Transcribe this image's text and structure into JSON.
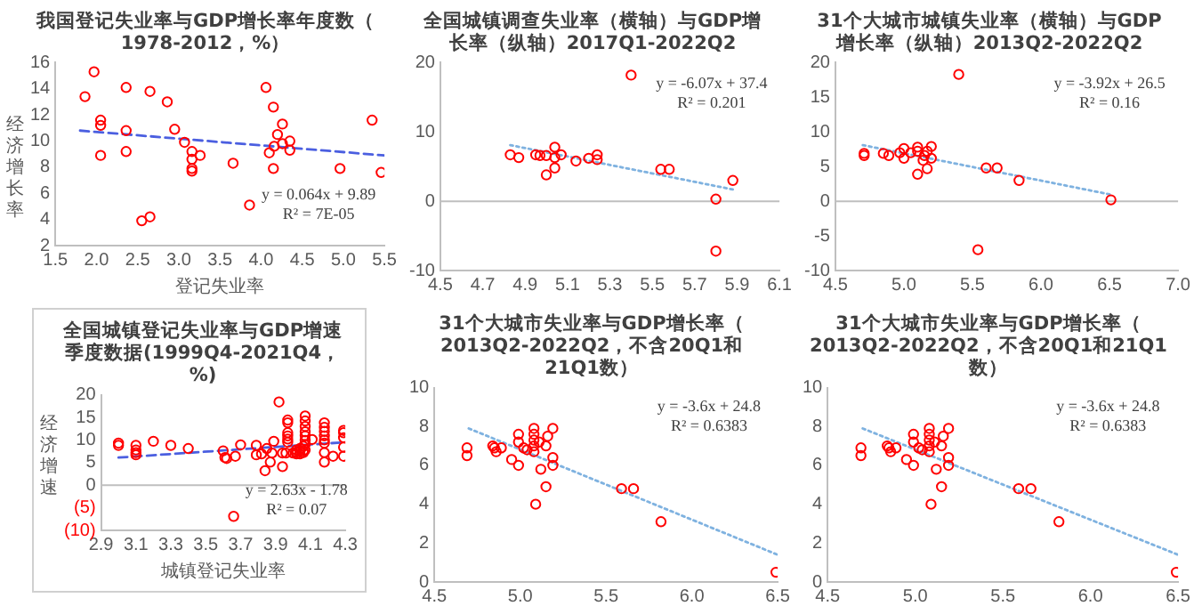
{
  "chart_data": [
    {
      "type": "scatter",
      "title": "我国登记失业率与GDP增长率年度数（1978-2012，%）",
      "xlabel": "登记失业率",
      "ylabel": "经济增长率",
      "xlim": [
        1.5,
        5.5
      ],
      "ylim": [
        2,
        16
      ],
      "xticks": [
        1.5,
        {
          "value": 2,
          "label": "2.0"
        },
        2.5,
        {
          "value": 3,
          "label": "3.0"
        },
        3.5,
        {
          "value": 4,
          "label": "4.0"
        },
        4.5,
        {
          "value": 5,
          "label": "5.0"
        },
        5.5
      ],
      "yticks": [
        2,
        4,
        6,
        8,
        10,
        12,
        14,
        16
      ],
      "annotations": [
        "y = 0.064x + 9.89\nR² = 7E-05"
      ],
      "series": [
        {
          "marker": "circle",
          "color": "#ff0000",
          "x": [
            1.86,
            1.97,
            2.05,
            2.05,
            2.05,
            2.36,
            2.36,
            2.36,
            2.65,
            2.55,
            2.65,
            2.86,
            2.95,
            3.07,
            3.16,
            3.26,
            3.16,
            3.16,
            3.16,
            3.66,
            3.86,
            4.06,
            4.15,
            4.2,
            4.26,
            4.26,
            4.1,
            4.15,
            4.35,
            4.35,
            4.96,
            5.35,
            5.46,
            4.16
          ],
          "values": [
            13.4,
            15.3,
            11.6,
            11.2,
            8.9,
            14.1,
            10.8,
            9.2,
            13.8,
            3.9,
            4.2,
            13.0,
            10.9,
            9.9,
            9.2,
            8.9,
            8.6,
            7.9,
            7.7,
            8.3,
            5.1,
            14.1,
            12.6,
            10.5,
            11.3,
            9.8,
            9.1,
            7.9,
            10.0,
            9.3,
            7.9,
            11.6,
            7.6,
            9.6
          ]
        },
        {
          "type": "line",
          "color": "#4b5fe0",
          "line_style": "dashed",
          "x": [
            1.8,
            5.5
          ],
          "values": [
            10.8,
            8.9
          ]
        }
      ]
    },
    {
      "type": "scatter",
      "title": "全国城镇调查失业率（横轴）与GDP增长率（纵轴）2017Q1-2022Q2",
      "xlim": [
        4.5,
        6.1
      ],
      "ylim": [
        -10,
        20
      ],
      "xticks": [
        4.5,
        4.7,
        4.9,
        5.1,
        5.3,
        5.5,
        5.7,
        5.9,
        6.1
      ],
      "yticks": [
        -10,
        0,
        10,
        20
      ],
      "annotations": [
        "y = -6.07x + 37.4\nR² = 0.201"
      ],
      "series": [
        {
          "marker": "circle",
          "color": "#ff0000",
          "x": [
            4.83,
            4.87,
            4.95,
            4.97,
            5.0,
            5.0,
            5.04,
            5.04,
            5.04,
            5.07,
            5.14,
            5.2,
            5.24,
            5.24,
            5.4,
            5.54,
            5.58,
            5.8,
            5.8,
            5.88
          ],
          "values": [
            6.7,
            6.3,
            6.7,
            6.6,
            6.6,
            3.8,
            7.8,
            6.3,
            4.8,
            6.7,
            5.8,
            6.2,
            6.0,
            6.7,
            18.2,
            4.6,
            4.6,
            0.3,
            -7.2,
            3.0
          ]
        },
        {
          "type": "line",
          "color": "#7fb2e0",
          "line_style": "dotted",
          "x": [
            4.83,
            5.88
          ],
          "values": [
            8.1,
            1.7
          ]
        }
      ]
    },
    {
      "type": "scatter",
      "title": "31个大城市城镇失业率（横轴）与GDP增长率（纵轴）2013Q2-2022Q2",
      "xlim": [
        4.5,
        7.0
      ],
      "ylim": [
        -10,
        20
      ],
      "xticks": [
        4.5,
        {
          "value": 5,
          "label": "5.0"
        },
        5.5,
        {
          "value": 6,
          "label": "6.0"
        },
        6.5,
        {
          "value": 7,
          "label": "7.0"
        }
      ],
      "yticks": [
        -10,
        -5,
        0,
        5,
        10,
        15,
        20
      ],
      "annotations": [
        "y = -3.92x + 26.5\nR² = 0.16"
      ],
      "series": [
        {
          "marker": "circle",
          "color": "#ff0000",
          "x": [
            4.71,
            4.71,
            4.85,
            4.89,
            4.97,
            5.0,
            5.0,
            5.05,
            5.1,
            5.1,
            5.15,
            5.17,
            5.2,
            5.2,
            5.1,
            5.17,
            5.14,
            5.4,
            5.6,
            5.68,
            5.84,
            5.54,
            6.51
          ],
          "values": [
            6.6,
            6.9,
            6.9,
            6.6,
            7.0,
            7.6,
            6.2,
            7.0,
            7.2,
            7.8,
            6.6,
            7.2,
            7.9,
            6.2,
            3.9,
            4.7,
            5.9,
            18.3,
            4.8,
            4.8,
            3.0,
            -7.0,
            0.2
          ]
        },
        {
          "type": "line",
          "color": "#7fb2e0",
          "line_style": "dotted",
          "x": [
            4.7,
            6.5
          ],
          "values": [
            8.1,
            1.0
          ]
        }
      ]
    },
    {
      "type": "scatter",
      "title": "全国城镇登记失业率与GDP增速季度数据(1999Q4-2021Q4，%)",
      "xlabel": "城镇登记失业率",
      "ylabel": "经济增速",
      "xlim": [
        2.9,
        4.3
      ],
      "ylim": [
        -10,
        20
      ],
      "xticks": [
        2.9,
        3.1,
        3.3,
        3.5,
        3.7,
        3.9,
        4.1,
        4.3
      ],
      "yticks": [
        {
          "value": -10,
          "label": "(10)"
        },
        {
          "value": -5,
          "label": "(5)"
        },
        0,
        5,
        10,
        15,
        20
      ],
      "annotations": [
        "y = 2.63x - 1.78\nR² = 0.07"
      ],
      "series": [
        {
          "marker": "circle",
          "color": "#ff0000",
          "x": [
            3.0,
            3.0,
            3.1,
            3.1,
            3.1,
            3.1,
            3.2,
            3.3,
            3.4,
            3.6,
            3.61,
            3.62,
            3.67,
            3.7,
            3.79,
            3.79,
            3.82,
            3.84,
            3.85,
            3.87,
            3.88,
            3.89,
            3.92,
            3.94,
            3.94,
            3.96,
            3.97,
            3.97,
            3.97,
            3.97,
            3.97,
            3.97,
            4.0,
            4.02,
            4.02,
            4.02,
            4.04,
            4.04,
            4.04,
            4.06,
            4.06,
            4.06,
            4.07,
            4.07,
            4.07,
            4.07,
            4.07,
            4.07,
            4.07,
            4.07,
            4.11,
            4.18,
            4.18,
            4.18,
            4.18,
            4.18,
            4.18,
            4.18,
            4.18,
            4.23,
            4.29,
            4.29,
            4.29,
            4.29,
            4.29,
            3.66
          ],
          "values": [
            9.3,
            8.8,
            8.8,
            7.8,
            7.2,
            6.7,
            9.7,
            8.8,
            8.1,
            7.6,
            6.1,
            5.9,
            6.4,
            8.9,
            8.8,
            6.7,
            6.9,
            3.2,
            8.1,
            5.1,
            7.1,
            9.7,
            18.4,
            7.1,
            4.1,
            7.1,
            14.4,
            13.8,
            11.6,
            10.9,
            10.2,
            9.5,
            7.1,
            7.8,
            7.3,
            6.9,
            8.1,
            7.5,
            6.9,
            8.6,
            7.6,
            7.2,
            15.3,
            14.2,
            13.0,
            11.8,
            10.9,
            9.9,
            9.0,
            7.8,
            10.1,
            13.8,
            12.8,
            11.9,
            10.9,
            10.0,
            9.3,
            7.2,
            5.1,
            6.4,
            12.1,
            11.6,
            10.5,
            8.4,
            6.4,
            -6.9
          ]
        },
        {
          "type": "line",
          "color": "#4b5fe0",
          "line_style": "dashed",
          "x": [
            3.0,
            4.3
          ],
          "values": [
            6.1,
            9.5
          ]
        }
      ]
    },
    {
      "type": "scatter",
      "title": "31个大城市失业率与GDP增长率（2013Q2-2022Q2，不含20Q1和21Q1数）",
      "xlim": [
        4.5,
        6.5
      ],
      "ylim": [
        0,
        10
      ],
      "xticks": [
        4.5,
        {
          "value": 5,
          "label": "5.0"
        },
        5.5,
        {
          "value": 6,
          "label": "6.0"
        },
        6.5
      ],
      "yticks": [
        0,
        2,
        4,
        6,
        8,
        10
      ],
      "annotations": [
        "y = -3.6x + 24.8\nR² = 0.6383"
      ],
      "series": [
        {
          "marker": "circle",
          "color": "#ff0000",
          "x": [
            4.69,
            4.69,
            4.84,
            4.85,
            4.86,
            4.89,
            4.95,
            4.99,
            4.99,
            4.99,
            5.02,
            5.04,
            5.08,
            5.08,
            5.08,
            5.08,
            5.08,
            5.11,
            5.09,
            5.12,
            5.15,
            5.15,
            5.16,
            5.19,
            5.19,
            5.19,
            5.59,
            5.66,
            5.82,
            6.49
          ],
          "values": [
            6.9,
            6.5,
            7.0,
            6.9,
            6.7,
            6.9,
            6.3,
            7.6,
            7.2,
            6.0,
            6.9,
            6.8,
            7.9,
            7.6,
            7.3,
            7.0,
            6.7,
            7.2,
            4.0,
            5.8,
            7.0,
            4.9,
            7.5,
            7.9,
            6.4,
            6.0,
            4.8,
            4.8,
            3.1,
            0.5
          ]
        },
        {
          "type": "line",
          "color": "#7fb2e0",
          "line_style": "dotted",
          "x": [
            4.7,
            6.5
          ],
          "values": [
            7.9,
            1.4
          ]
        }
      ]
    },
    {
      "type": "scatter",
      "title": "31个大城市失业率与GDP增长率（2013Q2-2022Q2，不含20Q1和21Q1数）",
      "xlim": [
        4.5,
        6.5
      ],
      "ylim": [
        0,
        10
      ],
      "xticks": [
        4.5,
        {
          "value": 5,
          "label": "5.0"
        },
        5.5,
        {
          "value": 6,
          "label": "6.0"
        },
        6.5
      ],
      "yticks": [
        0,
        2,
        4,
        6,
        8,
        10
      ],
      "annotations": [
        "y = -3.6x + 24.8\nR² = 0.6383"
      ],
      "series": [
        {
          "marker": "circle",
          "color": "#ff0000",
          "x": [
            4.69,
            4.69,
            4.84,
            4.85,
            4.86,
            4.89,
            4.95,
            4.99,
            4.99,
            4.99,
            5.02,
            5.04,
            5.08,
            5.08,
            5.08,
            5.08,
            5.08,
            5.11,
            5.09,
            5.12,
            5.15,
            5.15,
            5.16,
            5.19,
            5.19,
            5.19,
            5.59,
            5.66,
            5.82,
            6.49
          ],
          "values": [
            6.9,
            6.5,
            7.0,
            6.9,
            6.7,
            6.9,
            6.3,
            7.6,
            7.2,
            6.0,
            6.9,
            6.8,
            7.9,
            7.6,
            7.3,
            7.0,
            6.7,
            7.2,
            4.0,
            5.8,
            7.0,
            4.9,
            7.5,
            7.9,
            6.4,
            6.0,
            4.8,
            4.8,
            3.1,
            0.5
          ]
        },
        {
          "type": "line",
          "color": "#7fb2e0",
          "line_style": "dotted",
          "x": [
            4.7,
            6.5
          ],
          "values": [
            7.9,
            1.4
          ]
        }
      ]
    }
  ]
}
